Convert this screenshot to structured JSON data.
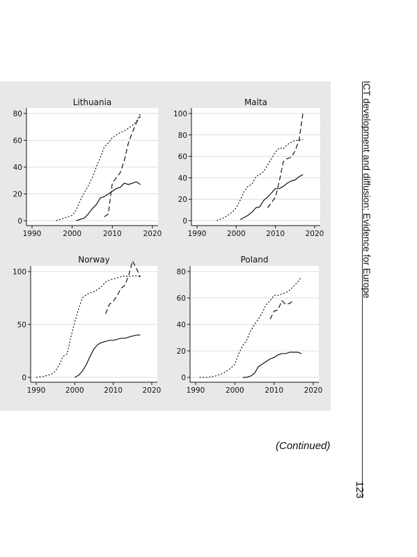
{
  "running_head": "ICT development and diffusion: Evidence for Europe",
  "page_number": "123",
  "continued": "(Continued)",
  "continued_word": "Continued",
  "chart_data": [
    {
      "type": "line",
      "title": "Lithuania",
      "xlim": [
        1990,
        2020
      ],
      "ylim": [
        0,
        80
      ],
      "xticks": [
        1990,
        2000,
        2010,
        2020
      ],
      "yticks": [
        0,
        20,
        40,
        60,
        80
      ],
      "grid": true,
      "series": [
        {
          "style": "dotted",
          "x": [
            1996,
            1998,
            2000,
            2001,
            2002,
            2003,
            2004,
            2005,
            2006,
            2007,
            2008,
            2009,
            2010,
            2011,
            2012,
            2013,
            2014,
            2015,
            2016,
            2017
          ],
          "values": [
            0,
            2,
            4,
            8,
            15,
            21,
            26,
            32,
            40,
            47,
            55,
            58,
            62,
            64,
            66,
            67,
            69,
            71,
            74,
            80
          ]
        },
        {
          "style": "solid",
          "x": [
            2001,
            2002,
            2003,
            2004,
            2005,
            2006,
            2007,
            2008,
            2009,
            2010,
            2011,
            2012,
            2013,
            2014,
            2015,
            2016,
            2017
          ],
          "values": [
            0,
            1,
            2,
            5,
            9,
            12,
            17,
            18,
            20,
            22,
            24,
            25,
            28,
            27,
            28,
            29,
            27
          ]
        },
        {
          "style": "dashed",
          "x": [
            2008,
            2009,
            2010,
            2011,
            2012,
            2013,
            2014,
            2015,
            2016,
            2017
          ],
          "values": [
            3,
            5,
            28,
            32,
            36,
            45,
            58,
            66,
            73,
            78
          ]
        }
      ]
    },
    {
      "type": "line",
      "title": "Malta",
      "xlim": [
        1990,
        2020
      ],
      "ylim": [
        0,
        100
      ],
      "xticks": [
        1990,
        2000,
        2010,
        2020
      ],
      "yticks": [
        0,
        20,
        40,
        60,
        80,
        100
      ],
      "grid": true,
      "series": [
        {
          "style": "dotted",
          "x": [
            1995,
            1997,
            1999,
            2000,
            2001,
            2002,
            2003,
            2004,
            2005,
            2006,
            2007,
            2008,
            2009,
            2010,
            2011,
            2012,
            2013,
            2014,
            2015,
            2016,
            2017
          ],
          "values": [
            0,
            3,
            8,
            12,
            19,
            27,
            32,
            34,
            41,
            43,
            46,
            52,
            58,
            64,
            68,
            67,
            71,
            73,
            75,
            75,
            76
          ]
        },
        {
          "style": "solid",
          "x": [
            2001,
            2002,
            2003,
            2004,
            2005,
            2006,
            2007,
            2008,
            2009,
            2010,
            2011,
            2012,
            2013,
            2014,
            2015,
            2016,
            2017
          ],
          "values": [
            1,
            3,
            5,
            8,
            12,
            13,
            19,
            22,
            26,
            30,
            30,
            32,
            35,
            37,
            38,
            41,
            43
          ]
        },
        {
          "style": "dashed",
          "x": [
            2008,
            2009,
            2010,
            2011,
            2012,
            2013,
            2014,
            2015,
            2016,
            2017
          ],
          "values": [
            12,
            17,
            22,
            37,
            55,
            58,
            59,
            65,
            75,
            100
          ]
        }
      ]
    },
    {
      "type": "line",
      "title": "Norway",
      "xlim": [
        1990,
        2020
      ],
      "ylim": [
        0,
        100
      ],
      "xticks": [
        1990,
        2000,
        2010,
        2020
      ],
      "yticks": [
        0,
        50,
        100
      ],
      "grid": true,
      "series": [
        {
          "style": "dotted",
          "x": [
            1990,
            1992,
            1994,
            1995,
            1996,
            1997,
            1998,
            1999,
            2000,
            2001,
            2002,
            2003,
            2004,
            2005,
            2006,
            2007,
            2008,
            2009,
            2010,
            2011,
            2012,
            2013,
            2014,
            2015,
            2016,
            2017
          ],
          "values": [
            0,
            1,
            3,
            6,
            12,
            20,
            22,
            38,
            52,
            65,
            75,
            78,
            80,
            81,
            83,
            86,
            90,
            92,
            93,
            94,
            95,
            96,
            95,
            96,
            96,
            95
          ]
        },
        {
          "style": "solid",
          "x": [
            2000,
            2001,
            2002,
            2003,
            2004,
            2005,
            2006,
            2007,
            2008,
            2009,
            2010,
            2011,
            2012,
            2013,
            2014,
            2015,
            2016,
            2017
          ],
          "values": [
            0,
            2,
            6,
            12,
            20,
            27,
            31,
            33,
            34,
            35,
            35,
            36,
            37,
            37,
            38,
            39,
            40,
            40
          ]
        },
        {
          "style": "dashed",
          "x": [
            2008,
            2009,
            2010,
            2011,
            2012,
            2013,
            2014,
            2015,
            2016,
            2017
          ],
          "values": [
            60,
            69,
            72,
            77,
            84,
            87,
            96,
            110,
            103,
            95
          ]
        }
      ]
    },
    {
      "type": "line",
      "title": "Poland",
      "xlim": [
        1990,
        2020
      ],
      "ylim": [
        0,
        80
      ],
      "xticks": [
        1990,
        2000,
        2010,
        2020
      ],
      "yticks": [
        0,
        20,
        40,
        60,
        80
      ],
      "grid": true,
      "series": [
        {
          "style": "dotted",
          "x": [
            1991,
            1993,
            1995,
            1996,
            1997,
            1998,
            1999,
            2000,
            2001,
            2002,
            2003,
            2004,
            2005,
            2006,
            2007,
            2008,
            2009,
            2010,
            2011,
            2012,
            2013,
            2014,
            2015,
            2016,
            2017
          ],
          "values": [
            0,
            0,
            1,
            2,
            3,
            5,
            7,
            10,
            18,
            24,
            28,
            35,
            40,
            44,
            49,
            55,
            58,
            62,
            62,
            63,
            64,
            66,
            69,
            72,
            76
          ]
        },
        {
          "style": "solid",
          "x": [
            2002,
            2003,
            2004,
            2005,
            2006,
            2007,
            2008,
            2009,
            2010,
            2011,
            2012,
            2013,
            2014,
            2015,
            2016,
            2017
          ],
          "values": [
            0,
            0,
            1,
            3,
            8,
            10,
            12,
            14,
            15,
            17,
            18,
            18,
            19,
            19,
            19,
            18
          ]
        },
        {
          "style": "dashed",
          "x": [
            2009,
            2010,
            2011,
            2012,
            2013,
            2014,
            2015
          ],
          "values": [
            44,
            50,
            51,
            58,
            55,
            56,
            58
          ]
        }
      ]
    }
  ]
}
